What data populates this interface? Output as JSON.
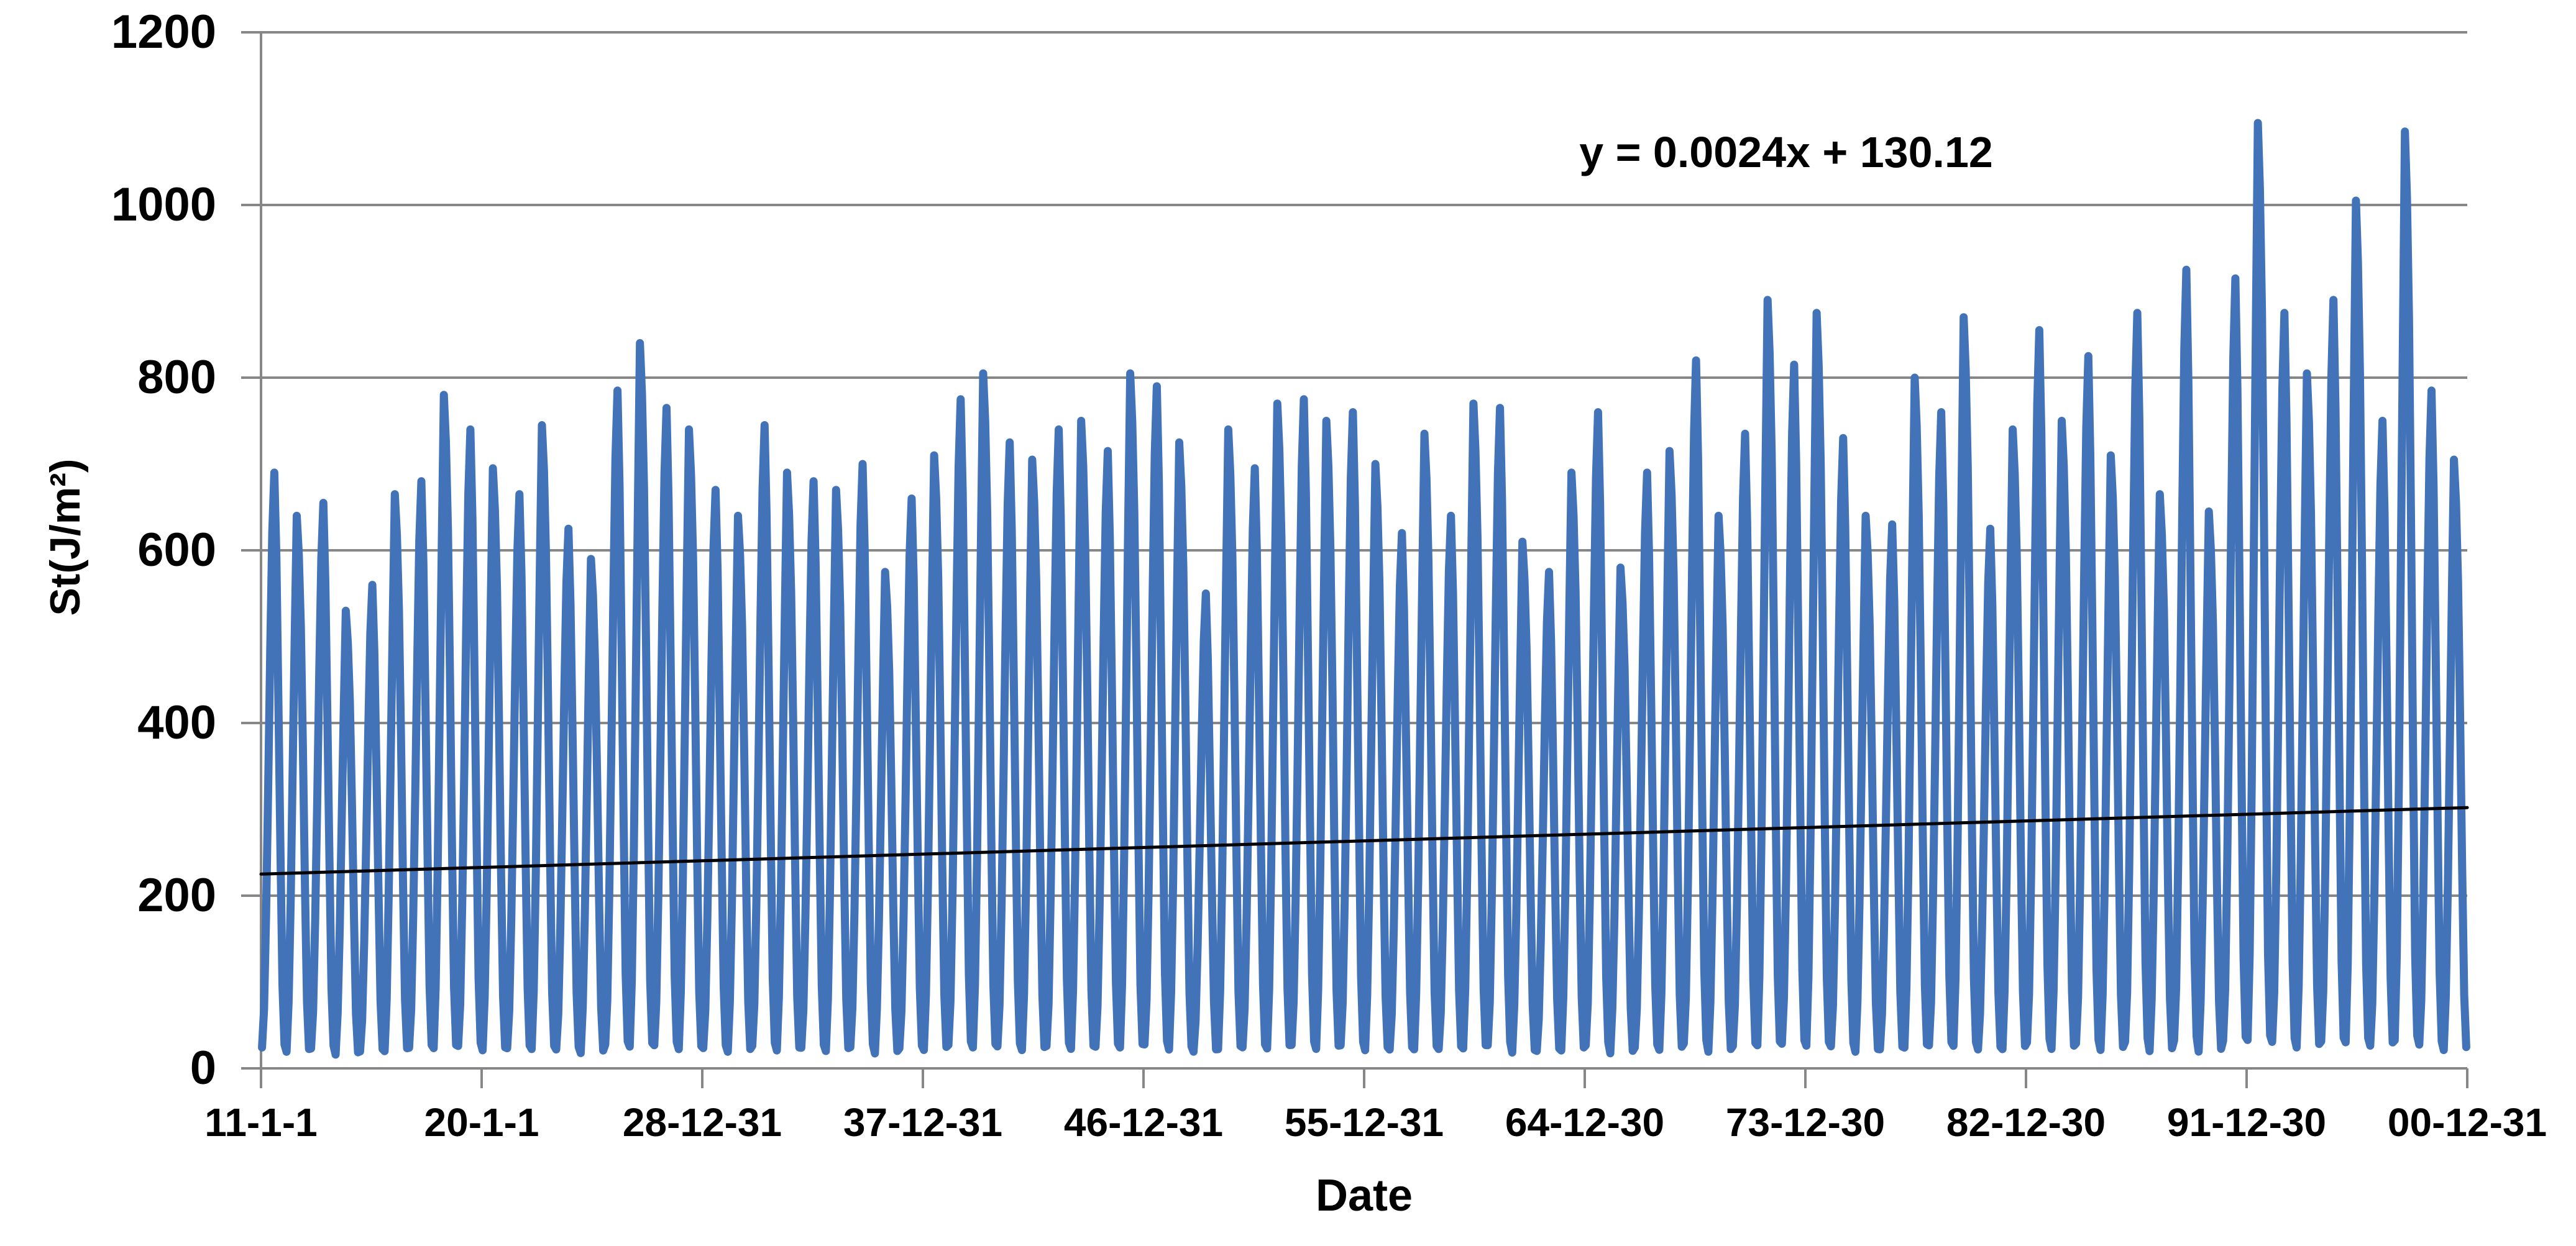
{
  "chart_data": {
    "type": "line",
    "title": "",
    "xlabel": "Date",
    "ylabel": "St(J/m²)",
    "ylim": [
      0,
      1200
    ],
    "yticks": [
      0,
      200,
      400,
      600,
      800,
      1000,
      1200
    ],
    "x_tick_labels": [
      "11-1-1",
      "20-1-1",
      "28-12-31",
      "37-12-31",
      "46-12-31",
      "55-12-31",
      "64-12-30",
      "73-12-30",
      "82-12-30",
      "91-12-30",
      "00-12-31"
    ],
    "x_start_year": 1911,
    "x_end_year": 2001,
    "grid": "horizontal",
    "legend": "none",
    "series": [
      {
        "color": "#4272B8",
        "start_year": 1911,
        "annual_peaks": [
          690,
          640,
          655,
          530,
          560,
          665,
          680,
          780,
          740,
          695,
          665,
          745,
          625,
          590,
          785,
          840,
          765,
          740,
          670,
          640,
          745,
          690,
          680,
          670,
          700,
          575,
          660,
          710,
          775,
          805,
          725,
          705,
          740,
          750,
          715,
          805,
          790,
          725,
          550,
          740,
          695,
          770,
          775,
          750,
          760,
          700,
          620,
          735,
          640,
          770,
          765,
          610,
          575,
          690,
          760,
          580,
          690,
          715,
          820,
          640,
          735,
          890,
          815,
          875,
          730,
          640,
          630,
          800,
          760,
          870,
          625,
          740,
          855,
          750,
          825,
          710,
          875,
          665,
          925,
          645,
          915,
          1095,
          875,
          805,
          890,
          1005,
          750,
          1085,
          785,
          705
        ],
        "monthly_shape_even_years": [
          0.035,
          0.1,
          0.26,
          0.47,
          0.7,
          0.9,
          1.0,
          0.86,
          0.62,
          0.37,
          0.14,
          0.04
        ],
        "monthly_shape_odd_years": [
          0.03,
          0.12,
          0.3,
          0.54,
          0.78,
          1.0,
          0.93,
          0.8,
          0.58,
          0.33,
          0.12,
          0.035
        ]
      }
    ],
    "trendline": {
      "equation": "y = 0.0024x + 130.12",
      "color": "#000000",
      "start_value": 225,
      "end_value": 302
    },
    "colors": {
      "gridline": "#878787",
      "axis": "#878787",
      "text": "#000000",
      "background": "#FFFFFF"
    }
  }
}
